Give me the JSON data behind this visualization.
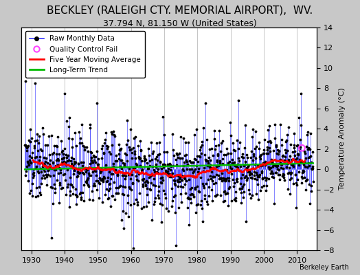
{
  "title": "BECKLEY (RALEIGH CTY. MEMORIAL AIRPORT),  WV.",
  "subtitle": "37.794 N, 81.150 W (United States)",
  "ylabel": "Temperature Anomaly (°C)",
  "attribution": "Berkeley Earth",
  "start_year": 1928.0,
  "end_year": 2014.9,
  "ylim": [
    -8,
    14
  ],
  "yticks_right": [
    -8,
    -6,
    -4,
    -2,
    0,
    2,
    4,
    6,
    8,
    10,
    12,
    14
  ],
  "xticks": [
    1930,
    1940,
    1950,
    1960,
    1970,
    1980,
    1990,
    2000,
    2010
  ],
  "bg_color": "#c8c8c8",
  "plot_bg_color": "#ffffff",
  "grid_color": "#bbbbbb",
  "line_color": "#3333ff",
  "line_alpha": 0.6,
  "marker_color": "#000000",
  "moving_avg_color": "#ff0000",
  "trend_color": "#00bb00",
  "qc_color": "#ff44ff",
  "title_fontsize": 11,
  "subtitle_fontsize": 9,
  "seed": 137
}
